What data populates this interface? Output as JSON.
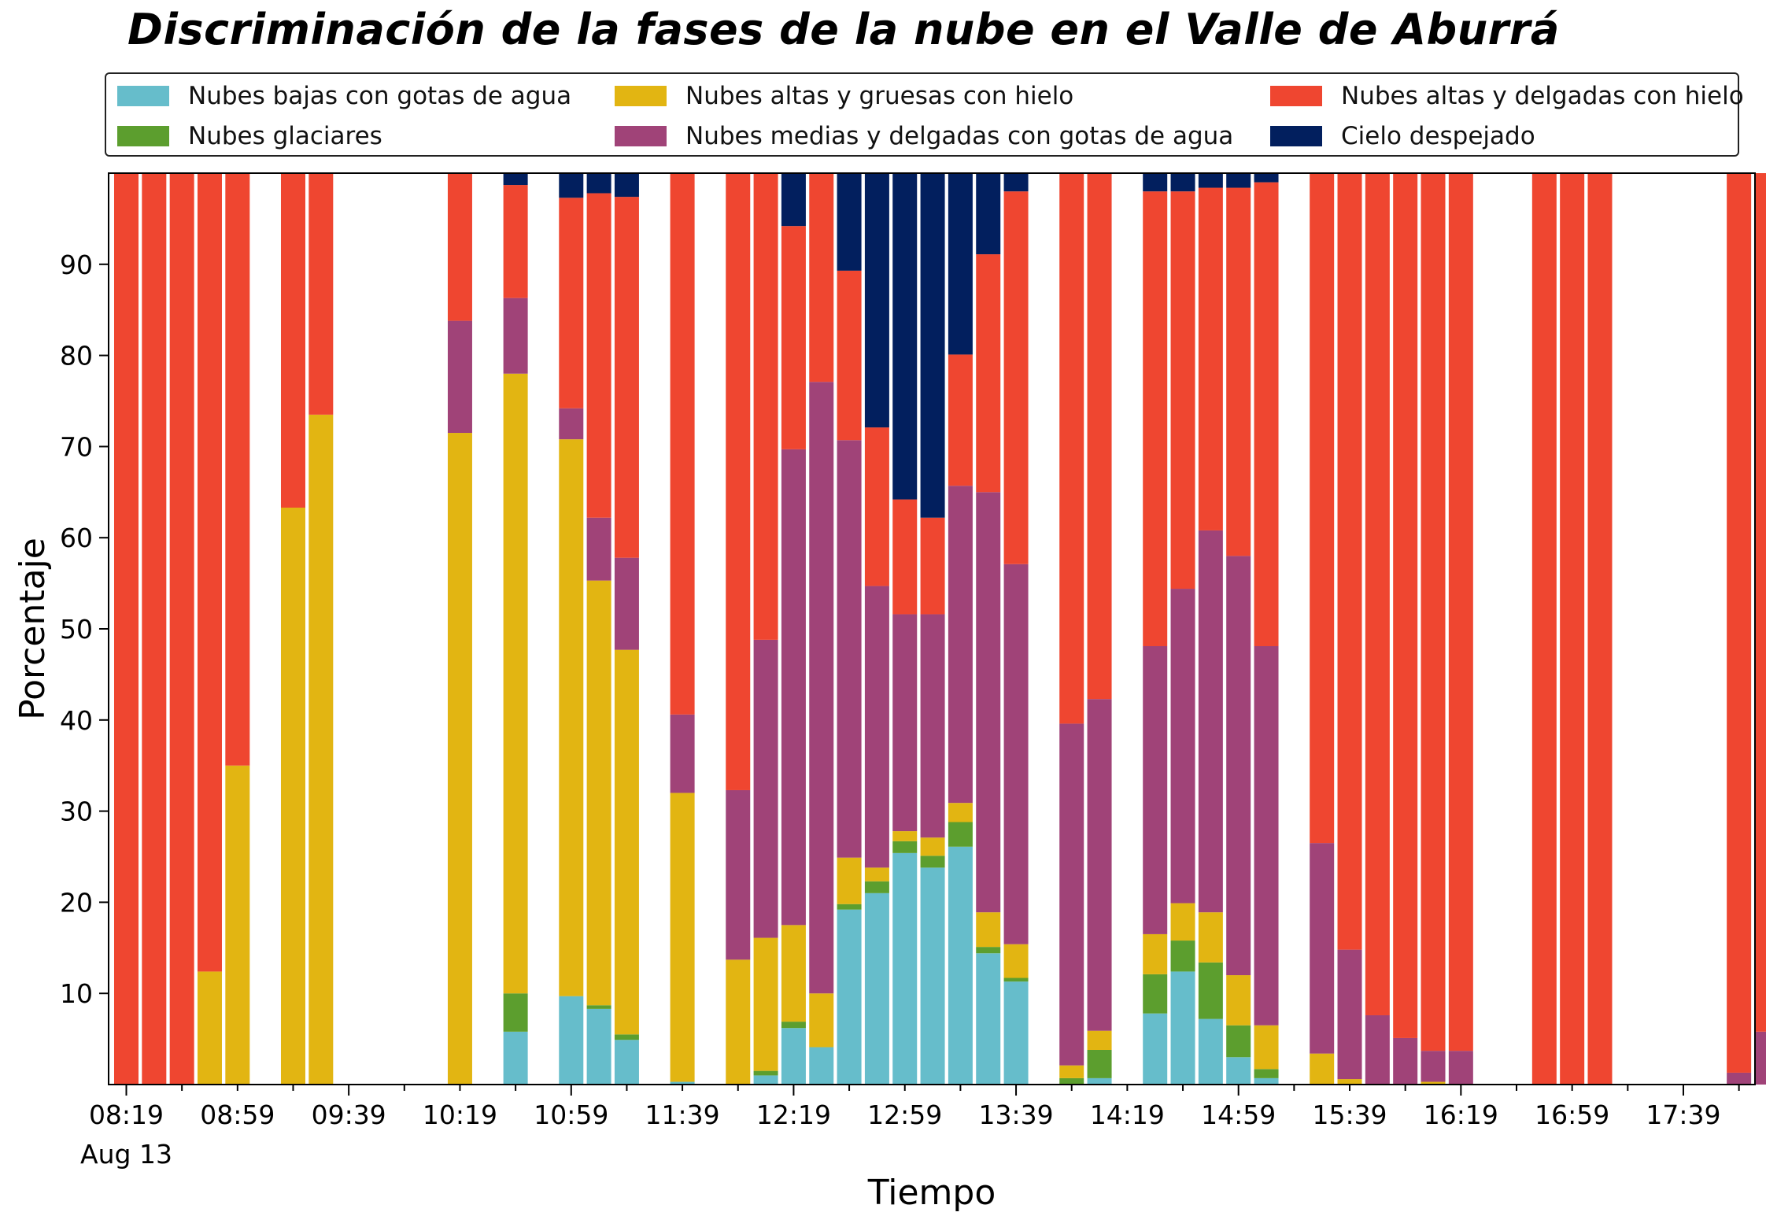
{
  "chart_data": {
    "type": "bar",
    "stacked": true,
    "title": "Discriminación de la fases de la nube en el Valle de Aburrá",
    "xlabel": "Tiempo",
    "ylabel": "Porcentaje",
    "ylim": [
      0,
      100
    ],
    "yticks": [
      "10",
      "20",
      "30",
      "40",
      "50",
      "60",
      "70",
      "80",
      "90"
    ],
    "xtick_labels": [
      "08:19",
      "08:59",
      "09:39",
      "10:19",
      "10:59",
      "11:39",
      "12:19",
      "12:59",
      "13:39",
      "14:19",
      "14:59",
      "15:39",
      "16:19",
      "16:59",
      "17:39"
    ],
    "xtick_sublabel": "Aug 13",
    "grid": false,
    "legend_position": "top",
    "colors": {
      "low_water": "#66bdcb",
      "glacial": "#5c9e2e",
      "high_thick_ice": "#e2b512",
      "mid_thin_water": "#a04378",
      "high_thin_ice": "#ef4630",
      "clear_sky": "#021f5e"
    },
    "series": [
      {
        "name": "Nubes bajas con gotas de agua",
        "key": "low_water"
      },
      {
        "name": "Nubes glaciares",
        "key": "glacial"
      },
      {
        "name": "Nubes altas y gruesas con hielo",
        "key": "high_thick_ice"
      },
      {
        "name": "Nubes medias y delgadas con gotas de agua",
        "key": "mid_thin_water"
      },
      {
        "name": "Nubes altas y delgadas con hielo",
        "key": "high_thin_ice"
      },
      {
        "name": "Cielo despejado",
        "key": "clear_sky"
      }
    ],
    "legend_order": [
      0,
      2,
      4,
      1,
      3,
      5
    ],
    "bars": [
      {
        "x": 0,
        "values": [
          0,
          0,
          0,
          0,
          100,
          0
        ]
      },
      {
        "x": 1,
        "values": [
          0,
          0,
          0,
          0,
          100,
          0
        ]
      },
      {
        "x": 2,
        "values": [
          0,
          0,
          0,
          0,
          100,
          0
        ]
      },
      {
        "x": 3,
        "values": [
          0,
          0,
          12.4,
          0,
          87.6,
          0
        ]
      },
      {
        "x": 4,
        "values": [
          0,
          0,
          35,
          0,
          65,
          0
        ]
      },
      {
        "x": 6,
        "values": [
          0,
          0,
          63.3,
          0,
          36.7,
          0
        ]
      },
      {
        "x": 7,
        "values": [
          0,
          0,
          73.5,
          0,
          26.5,
          0
        ]
      },
      {
        "x": 12,
        "values": [
          0,
          0,
          71.5,
          12.3,
          16.2,
          0
        ]
      },
      {
        "x": 14,
        "values": [
          5.8,
          4.2,
          68,
          8.3,
          12.4,
          1.3
        ]
      },
      {
        "x": 16,
        "values": [
          9.7,
          0,
          61.1,
          3.4,
          23.1,
          2.7
        ]
      },
      {
        "x": 17,
        "values": [
          8.3,
          0.4,
          46.6,
          6.9,
          35.6,
          2.2
        ]
      },
      {
        "x": 18,
        "values": [
          4.9,
          0.6,
          42.2,
          10.1,
          39.6,
          2.6
        ]
      },
      {
        "x": 20,
        "values": [
          0.3,
          0,
          31.7,
          8.6,
          59.4,
          0
        ]
      },
      {
        "x": 22,
        "values": [
          0,
          0,
          13.7,
          18.6,
          67.7,
          0
        ]
      },
      {
        "x": 23,
        "values": [
          1,
          0.5,
          14.6,
          32.7,
          51.2,
          0
        ]
      },
      {
        "x": 24,
        "values": [
          6.2,
          0.7,
          10.6,
          52.2,
          24.5,
          5.8
        ]
      },
      {
        "x": 25,
        "values": [
          4.1,
          0,
          5.9,
          67.1,
          22.9,
          0
        ]
      },
      {
        "x": 26,
        "values": [
          19.2,
          0.6,
          5.1,
          45.8,
          18.6,
          10.7
        ]
      },
      {
        "x": 27,
        "values": [
          21,
          1.3,
          1.5,
          30.9,
          17.4,
          27.9
        ]
      },
      {
        "x": 28,
        "values": [
          25.4,
          1.3,
          1.1,
          23.8,
          12.6,
          35.8
        ]
      },
      {
        "x": 29,
        "values": [
          23.8,
          1.3,
          2,
          24.5,
          10.6,
          37.8
        ]
      },
      {
        "x": 30,
        "values": [
          26.1,
          2.7,
          2.1,
          34.8,
          14.4,
          19.9
        ]
      },
      {
        "x": 31,
        "values": [
          14.4,
          0.7,
          3.8,
          46.1,
          26.1,
          8.9
        ]
      },
      {
        "x": 32,
        "values": [
          11.3,
          0.4,
          3.7,
          41.7,
          40.9,
          2
        ]
      },
      {
        "x": 34,
        "values": [
          0,
          0.7,
          1.4,
          37.5,
          60.4,
          0
        ]
      },
      {
        "x": 35,
        "values": [
          0.7,
          3.1,
          2.1,
          36.4,
          57.7,
          0
        ]
      },
      {
        "x": 37,
        "values": [
          7.8,
          4.3,
          4.4,
          31.6,
          49.9,
          2
        ]
      },
      {
        "x": 38,
        "values": [
          12.4,
          3.4,
          4.1,
          34.5,
          43.6,
          2
        ]
      },
      {
        "x": 39,
        "values": [
          7.2,
          6.2,
          5.5,
          41.9,
          37.6,
          1.6
        ]
      },
      {
        "x": 40,
        "values": [
          3,
          3.5,
          5.5,
          46,
          40.4,
          1.6
        ]
      },
      {
        "x": 41,
        "values": [
          0.7,
          1,
          4.8,
          41.6,
          50.9,
          1
        ]
      },
      {
        "x": 43,
        "values": [
          0,
          0,
          3.4,
          23.1,
          73.5,
          0
        ]
      },
      {
        "x": 44,
        "values": [
          0,
          0,
          0.6,
          14.2,
          85.2,
          0
        ]
      },
      {
        "x": 45,
        "values": [
          0,
          0,
          0,
          7.6,
          92.4,
          0
        ]
      },
      {
        "x": 46,
        "values": [
          0,
          0,
          0,
          5.1,
          94.9,
          0
        ]
      },
      {
        "x": 47,
        "values": [
          0,
          0,
          0.3,
          3.4,
          96.3,
          0
        ]
      },
      {
        "x": 48,
        "values": [
          0,
          0,
          0,
          3.7,
          96.3,
          0
        ]
      },
      {
        "x": 51,
        "values": [
          0,
          0,
          0,
          0,
          100,
          0
        ]
      },
      {
        "x": 52,
        "values": [
          0,
          0,
          0,
          0,
          100,
          0
        ]
      },
      {
        "x": 53,
        "values": [
          0,
          0,
          0,
          0,
          100,
          0
        ]
      },
      {
        "x": 58,
        "values": [
          0,
          0,
          0,
          1.3,
          98.7,
          0
        ]
      },
      {
        "x": 59,
        "values": [
          0,
          0,
          0,
          5.8,
          94.2,
          0
        ]
      }
    ]
  }
}
